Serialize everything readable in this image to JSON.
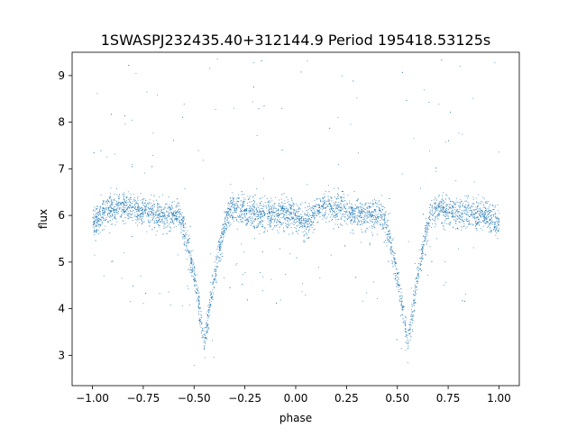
{
  "chart_data": {
    "type": "scatter",
    "title": "1SWASPJ232435.40+312144.9 Period 195418.53125s",
    "xlabel": "phase",
    "ylabel": "flux",
    "xlim": [
      -1.1,
      1.1
    ],
    "ylim": [
      2.35,
      9.5
    ],
    "x_ticks": [
      -1.0,
      -0.75,
      -0.5,
      -0.25,
      0.0,
      0.25,
      0.5,
      0.75,
      1.0
    ],
    "x_tick_labels": [
      "−1.00",
      "−0.75",
      "−0.50",
      "−0.25",
      "0.00",
      "0.25",
      "0.50",
      "0.75",
      "1.00"
    ],
    "y_ticks": [
      3,
      4,
      5,
      6,
      7,
      8,
      9
    ],
    "y_tick_labels": [
      "3",
      "4",
      "5",
      "6",
      "7",
      "8",
      "9"
    ],
    "grid": false,
    "legend": "none",
    "marker_color": "#1f77b4",
    "phase_range": [
      -1.0,
      1.0
    ],
    "baseline_flux": 6.1,
    "primary_eclipses": [
      {
        "phase": -0.45,
        "min_flux": 3.2
      },
      {
        "phase": 0.55,
        "min_flux": 3.2
      }
    ],
    "secondary_eclipses": [
      {
        "phase": -1.0,
        "min_flux": 5.85
      },
      {
        "phase": 0.05,
        "min_flux": 5.8
      },
      {
        "phase": 1.0,
        "min_flux": 5.85
      }
    ],
    "outlier_flux_max": 9.4
  }
}
